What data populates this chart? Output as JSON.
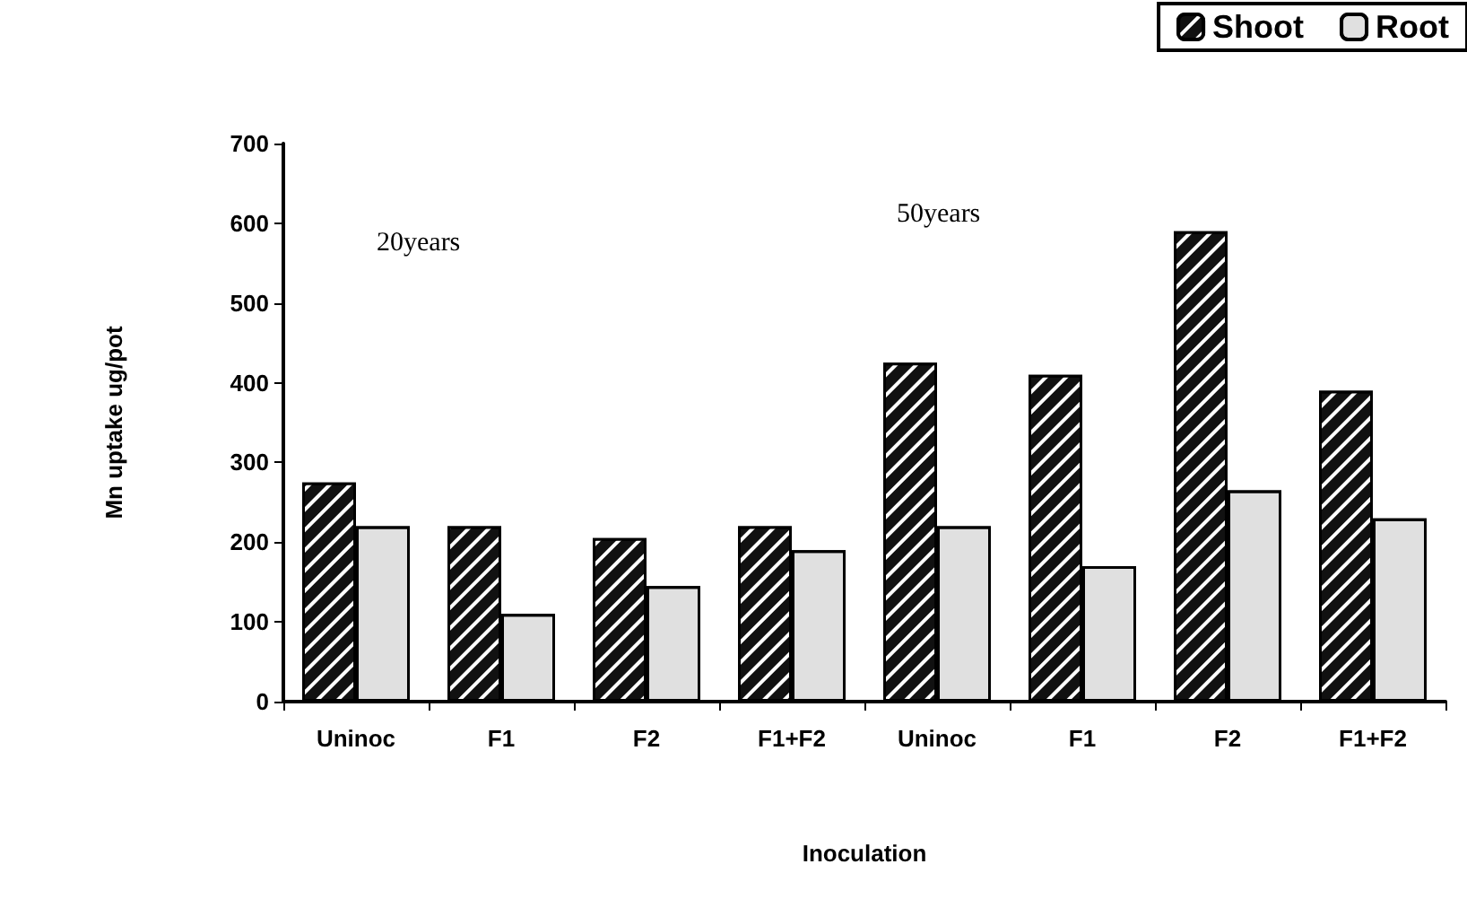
{
  "chart_data": {
    "type": "bar",
    "xlabel": "Inoculation",
    "ylabel": "Mn uptake ug/pot",
    "categories": [
      "Uninoc",
      "F1",
      "F2",
      "F1+F2",
      "Uninoc",
      "F1",
      "F2",
      "F1+F2"
    ],
    "series": [
      {
        "name": "Shoot",
        "color": "#111111",
        "values": [
          275,
          220,
          205,
          220,
          425,
          410,
          590,
          390
        ]
      },
      {
        "name": "Root",
        "color": "#e0e0e0",
        "values": [
          220,
          110,
          145,
          190,
          220,
          170,
          265,
          230
        ]
      }
    ],
    "annotations": [
      "20years",
      "50years"
    ],
    "ylim": [
      0,
      700
    ],
    "yticks": [
      0,
      100,
      200,
      300,
      400,
      500,
      600,
      700
    ],
    "grid": false,
    "legend": "top right"
  }
}
